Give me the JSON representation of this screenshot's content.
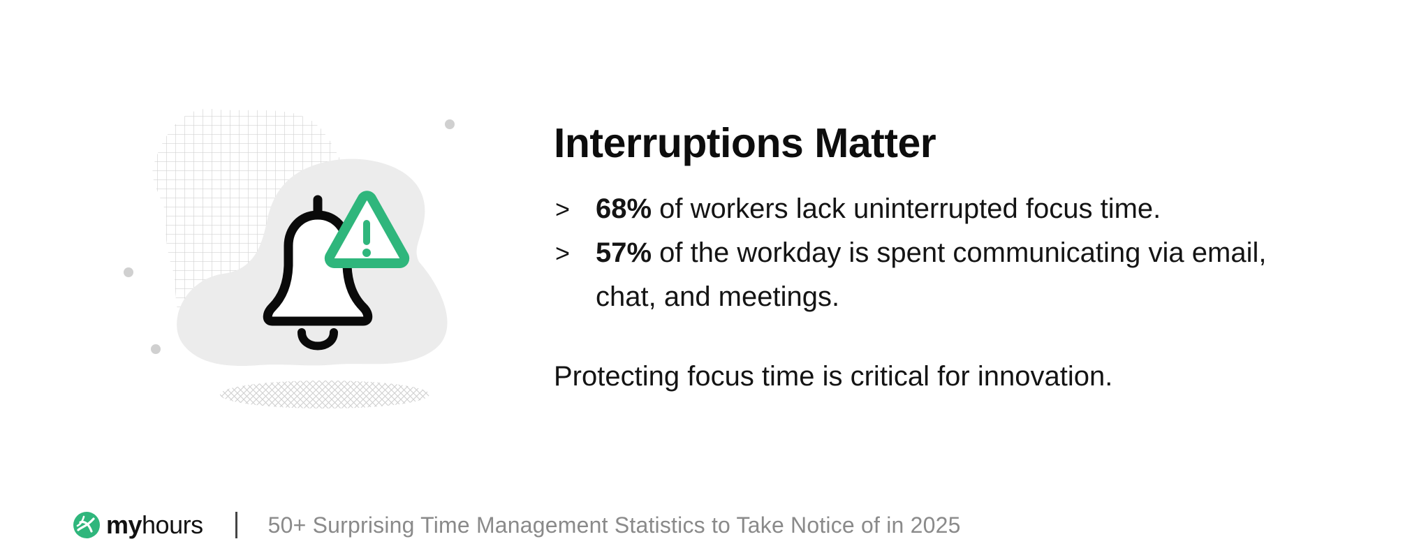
{
  "illustration": {
    "icon": "bell-icon",
    "badge_icon": "warning-triangle-icon",
    "accent_color": "#2fb67c",
    "blob_color": "#ececec"
  },
  "content": {
    "title": "Interruptions Matter",
    "bullet_marker": ">",
    "bullets": [
      {
        "stat": "68%",
        "text": " of workers lack uninterrupted focus time."
      },
      {
        "stat": "57%",
        "text": " of the workday is spent communicating via email, chat, and meetings."
      }
    ],
    "closing": "Protecting focus time is critical for innovation."
  },
  "footer": {
    "brand_icon": "myhours-logo-icon",
    "brand_primary": "my",
    "brand_secondary": "hours",
    "divider": "|",
    "caption": "50+ Surprising Time Management Statistics to Take Notice of in 2025"
  }
}
